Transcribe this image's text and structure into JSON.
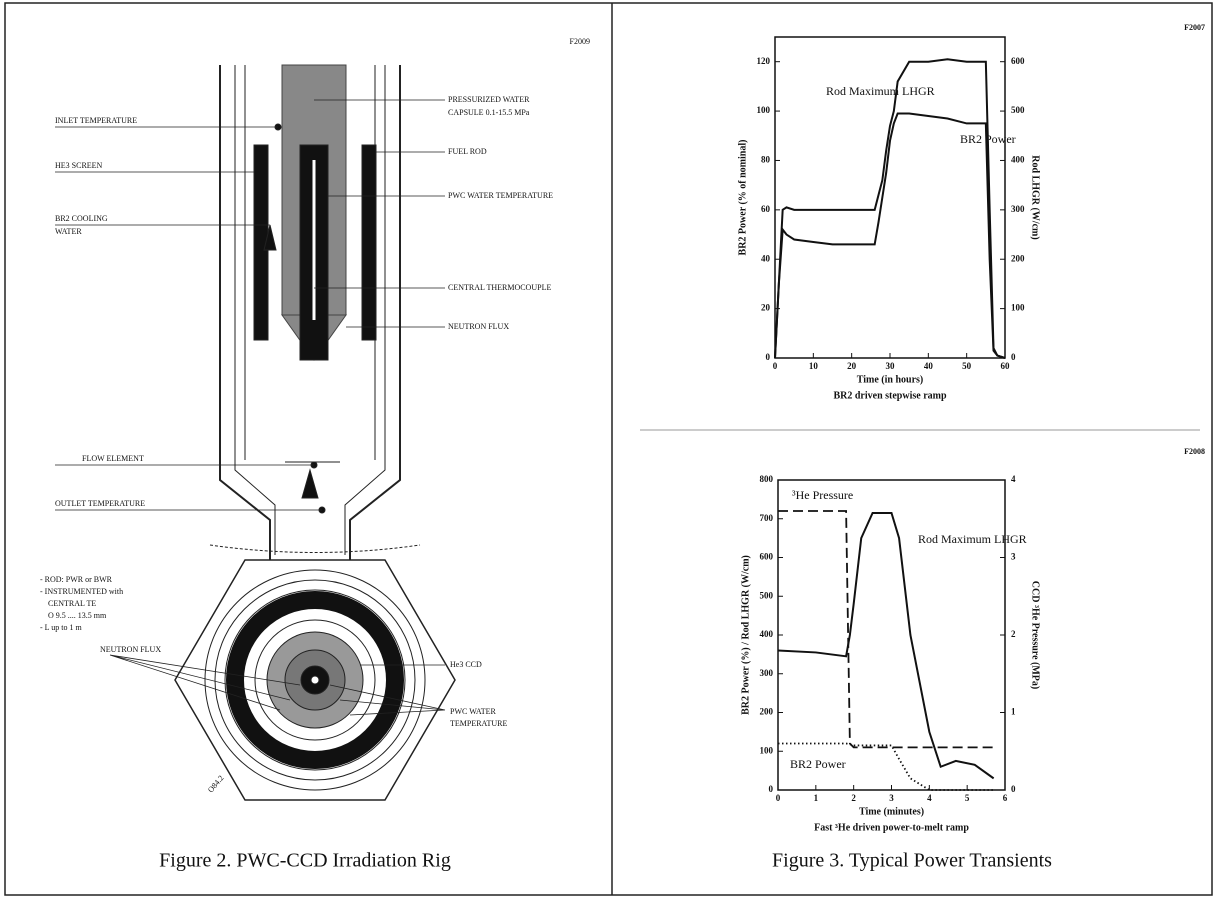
{
  "diagram": {
    "code": "F2009",
    "left_labels": [
      "INLET TEMPERATURE",
      "HE3 SCREEN",
      "BR2 COOLING",
      "WATER",
      "FLOW ELEMENT",
      "OUTLET TEMPERATURE"
    ],
    "right_labels": [
      "PRESSURIZED WATER",
      "CAPSULE 0.1-15.5 MPa",
      "FUEL ROD",
      "PWC WATER TEMPERATURE",
      "CENTRAL THERMOCOUPLE",
      "NEUTRON FLUX"
    ],
    "notes": [
      "- ROD: PWR or BWR",
      "- INSTRUMENTED with",
      "CENTRAL TE",
      "O 9.5 .... 13.5 mm",
      "- L up to 1 m"
    ],
    "section_labels": [
      "NEUTRON FLUX",
      "He3 CCD",
      "PWC WATER",
      "TEMPERATURE",
      "O84.2"
    ],
    "caption": "Figure 2. PWC-CCD Irradiation Rig"
  },
  "right_caption": "Figure 3. Typical Power Transients",
  "chart_data": [
    {
      "type": "line",
      "code": "F2007",
      "x_label": "Time (in hours)",
      "subtitle": "BR2 driven stepwise ramp",
      "y_label": "BR2 Power (% of nominal)",
      "y2_label": "Rod LHGR (W/cm)",
      "xlim": [
        0,
        60
      ],
      "xticks": [
        0,
        10,
        20,
        30,
        40,
        50,
        60
      ],
      "ylim": [
        0,
        130
      ],
      "yticks": [
        0,
        20,
        40,
        60,
        80,
        100,
        120
      ],
      "y2lim": [
        0,
        650
      ],
      "y2ticks": [
        0,
        100,
        200,
        300,
        400,
        500,
        600
      ],
      "x": [
        0,
        1,
        2,
        3,
        5,
        10,
        15,
        20,
        26,
        27,
        28,
        29,
        30,
        31,
        32,
        35,
        40,
        45,
        50,
        55,
        56,
        57,
        58,
        60
      ],
      "series": [
        {
          "name": "Rod Maximum LHGR",
          "axis": "y2",
          "color": "#111111",
          "dash": "solid",
          "values": [
            0,
            150,
            300,
            305,
            300,
            300,
            300,
            300,
            300,
            330,
            360,
            420,
            470,
            500,
            560,
            600,
            600,
            605,
            600,
            600,
            300,
            20,
            5,
            0
          ]
        },
        {
          "name": "BR2 Power",
          "color": "#111111",
          "dash": "solid",
          "values": [
            0,
            30,
            52,
            50,
            48,
            47,
            46,
            46,
            46,
            55,
            65,
            75,
            88,
            95,
            99,
            99,
            98,
            97,
            95,
            95,
            40,
            3,
            1,
            0
          ]
        }
      ]
    },
    {
      "type": "line",
      "code": "F2008",
      "x_label": "Time (minutes)",
      "subtitle": "Fast ³He driven power-to-melt ramp",
      "y_label": "BR2 Power (%) / Rod LHGR (W/cm)",
      "y2_label": "CCD ³He Pressure (MPa)",
      "xlim": [
        0,
        6
      ],
      "xticks": [
        0,
        1,
        2,
        3,
        4,
        5,
        6
      ],
      "ylim": [
        0,
        800
      ],
      "yticks": [
        0,
        100,
        200,
        300,
        400,
        500,
        600,
        700,
        800
      ],
      "y2lim": [
        0,
        4
      ],
      "y2ticks": [
        0,
        1,
        2,
        3,
        4
      ],
      "x": [
        0,
        1,
        1.8,
        1.9,
        2,
        2.2,
        2.5,
        3,
        3.2,
        3.5,
        4,
        4.3,
        4.7,
        5.2,
        5.7
      ],
      "series": [
        {
          "name": "³He Pressure",
          "axis": "y2",
          "color": "#111111",
          "dash": "dashed",
          "values": [
            3.6,
            3.6,
            3.6,
            0.6,
            0.55,
            0.55,
            0.55,
            0.55,
            0.55,
            0.55,
            0.55,
            0.55,
            0.55,
            0.55,
            0.55
          ]
        },
        {
          "name": "Rod Maximum LHGR",
          "color": "#111111",
          "dash": "solid",
          "values": [
            360,
            355,
            345,
            400,
            480,
            650,
            715,
            715,
            650,
            400,
            150,
            60,
            75,
            65,
            30
          ]
        },
        {
          "name": "BR2 Power",
          "color": "#111111",
          "dash": "dotted",
          "values": [
            120,
            120,
            120,
            118,
            115,
            115,
            115,
            115,
            80,
            30,
            0,
            0,
            0,
            0,
            0
          ]
        }
      ]
    }
  ]
}
